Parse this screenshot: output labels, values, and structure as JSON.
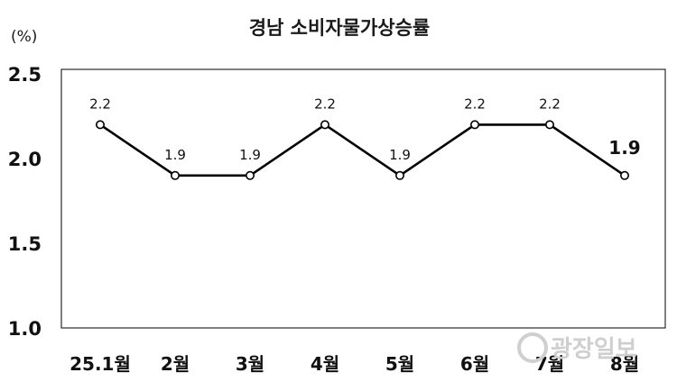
{
  "chart_data": {
    "type": "line",
    "title": "경남 소비자물가상승률",
    "unit_label": "(%)",
    "categories": [
      "25.1월",
      "2월",
      "3월",
      "4월",
      "5월",
      "6월",
      "7월",
      "8월"
    ],
    "values": [
      2.2,
      1.9,
      1.9,
      2.2,
      1.9,
      2.2,
      2.2,
      1.9
    ],
    "data_labels": [
      "2.2",
      "1.9",
      "1.9",
      "2.2",
      "1.9",
      "2.2",
      "2.2",
      "1.9"
    ],
    "yticks": [
      "2.5",
      "2.0",
      "1.5",
      "1.0"
    ],
    "ylim": [
      1.0,
      2.5
    ],
    "grid": false,
    "highlight_index": 7,
    "colors": {
      "line": "#000000",
      "marker_fill": "#ffffff",
      "highlight_label": "#e8141b",
      "watermark": "#cfcfcf"
    }
  },
  "watermark": {
    "text": "광장일보"
  }
}
